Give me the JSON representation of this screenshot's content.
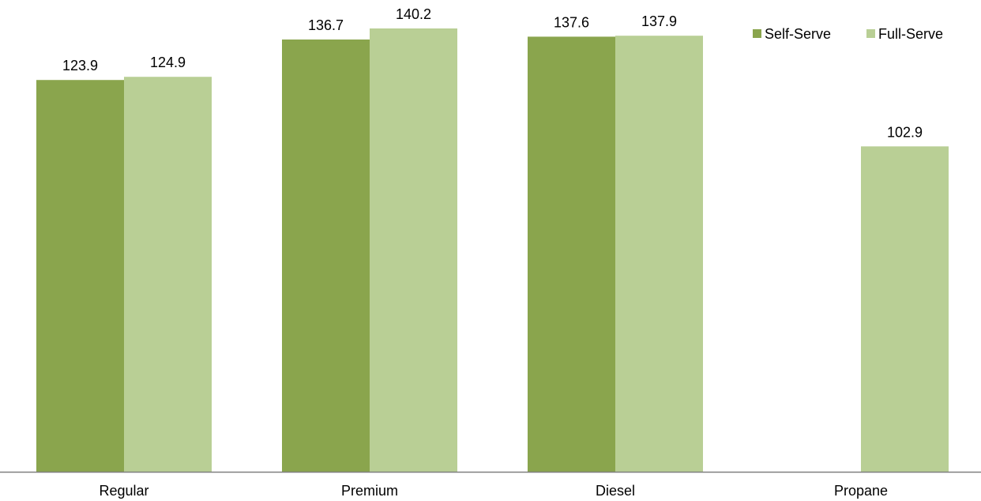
{
  "chart_data": {
    "type": "bar",
    "categories": [
      "Regular",
      "Premium",
      "Diesel",
      "Propane"
    ],
    "series": [
      {
        "name": "Self-Serve",
        "color": "#8aa54d",
        "values": [
          123.9,
          136.7,
          137.6,
          null
        ]
      },
      {
        "name": "Full-Serve",
        "color": "#b9cf95",
        "values": [
          124.9,
          140.2,
          137.9,
          102.9
        ]
      }
    ],
    "title": "",
    "xlabel": "",
    "ylabel": "",
    "ylim": [
      0,
      140.2
    ],
    "grid": false,
    "legend_position": "top-right",
    "axis_color": "#808080"
  }
}
